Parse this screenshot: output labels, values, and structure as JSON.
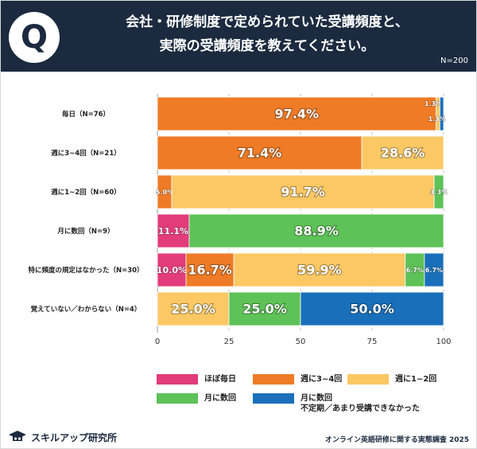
{
  "header": {
    "title_line1": "会社・研修制度で定められていた受講頻度と、",
    "title_line2": "実際の受講頻度を教えてください。",
    "q_mark": "Q",
    "n_total": "N=200"
  },
  "colors": {
    "header_bg": "#1b2a3f",
    "pink": "#e23c7a",
    "orange": "#ef7b26",
    "yellow": "#fbc864",
    "green": "#5dc257",
    "blue": "#1a6fba"
  },
  "chart_data": {
    "type": "bar",
    "orientation": "horizontal",
    "stacked": true,
    "categories": [
      "毎日（N=76）",
      "週に3~4回（N=21）",
      "週に1~2回（N=60）",
      "月に数回（N=9）",
      "特に頻度の規定はなかった（N=30）",
      "覚えていない／わからない（N=4）"
    ],
    "series": [
      {
        "name": "ほぼ毎日",
        "color": "#e23c7a",
        "values": [
          0,
          0,
          0,
          11.1,
          10.0,
          0
        ],
        "labels": [
          "",
          "",
          "",
          "11.1%",
          "10.0%",
          ""
        ]
      },
      {
        "name": "週に3~4回",
        "color": "#ef7b26",
        "values": [
          97.4,
          71.4,
          5.0,
          0,
          16.7,
          0
        ],
        "labels": [
          "97.4%",
          "71.4%",
          "5.0%",
          "",
          "16.7%",
          ""
        ]
      },
      {
        "name": "週に1~2回",
        "color": "#fbc864",
        "values": [
          1.3,
          28.6,
          91.7,
          0,
          59.9,
          25.0
        ],
        "labels": [
          "1.3%",
          "28.6%",
          "91.7%",
          "",
          "59.9%",
          "25.0%"
        ]
      },
      {
        "name": "月に数回",
        "color": "#5dc257",
        "values": [
          0,
          0,
          3.3,
          88.9,
          6.7,
          25.0
        ],
        "labels": [
          "",
          "",
          "3.3%",
          "88.9%",
          "6.7%",
          "25.0%"
        ]
      },
      {
        "name": "月に数回 不定期／あまり受講できなかった",
        "color": "#1a6fba",
        "values": [
          1.3,
          0,
          0,
          0,
          6.7,
          50.0
        ],
        "labels": [
          "1.3%",
          "",
          "",
          "",
          "6.7%",
          "50.0%"
        ]
      }
    ],
    "xlim": [
      0,
      100
    ],
    "xticks": [
      "0",
      "25",
      "50",
      "75",
      "100"
    ],
    "grid": true
  },
  "legend": [
    {
      "label": "ほぼ毎日",
      "color": "#e23c7a"
    },
    {
      "label": "週に3~4回",
      "color": "#ef7b26"
    },
    {
      "label": "週に1~2回",
      "color": "#fbc864"
    },
    {
      "label": "月に数回",
      "color": "#5dc257"
    },
    {
      "label": "月に数回",
      "label2": "不定期／あまり受講できなかった",
      "color": "#1a6fba"
    }
  ],
  "footer": {
    "brand": "スキルアップ研究所",
    "source": "オンライン英語研修に関する実態調査 2025"
  }
}
